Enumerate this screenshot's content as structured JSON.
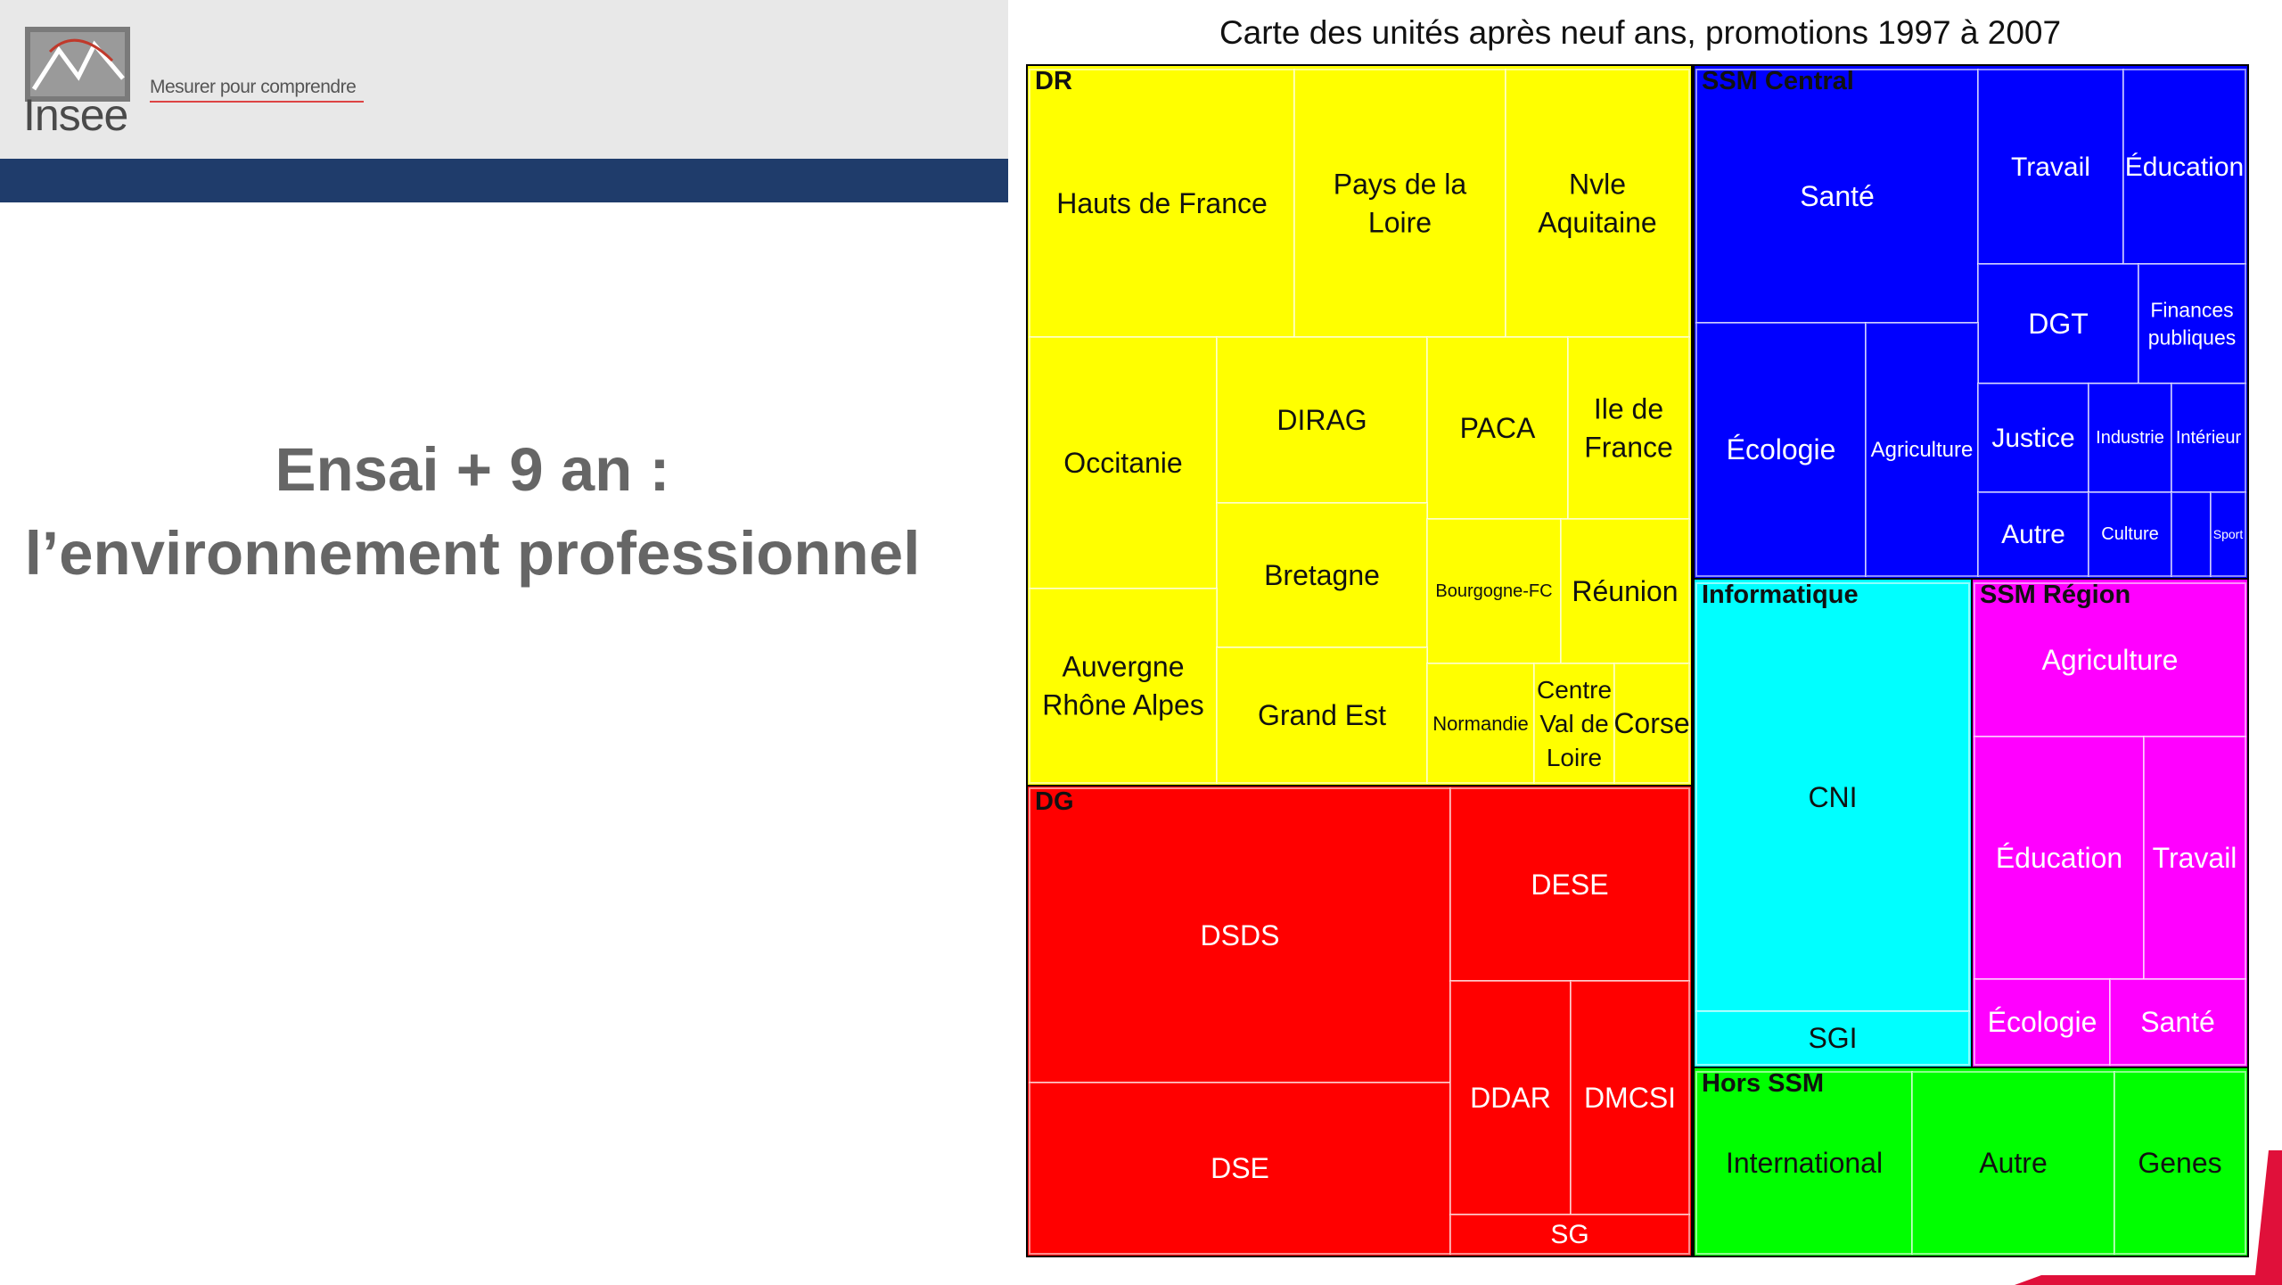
{
  "logo": {
    "word": "Insee",
    "tagline": "Mesurer pour comprendre"
  },
  "slide": {
    "title_line1": "Ensai + 9 an :",
    "title_line2": "l’environnement professionnel"
  },
  "colors": {
    "header_bar": "#1f3c6b",
    "DR": "#ffff00",
    "DG": "#ff0000",
    "SSM Central": "#0000ff",
    "Informatique": "#00ffff",
    "SSM Région": "#ff00ff",
    "Hors SSM": "#00ff00"
  },
  "chart_data": {
    "type": "treemap",
    "title": "Carte des unités après neuf ans, promotions 1997 à 2007",
    "groups": [
      {
        "name": "DR",
        "color": "#ffff00",
        "text_color": "#111111",
        "items": [
          {
            "label": "Hauts de France"
          },
          {
            "label": "Pays de la Loire"
          },
          {
            "label": "Nvle Aquitaine"
          },
          {
            "label": "Occitanie"
          },
          {
            "label": "DIRAG"
          },
          {
            "label": "PACA"
          },
          {
            "label": "Ile de France"
          },
          {
            "label": "Bretagne"
          },
          {
            "label": "Bourgogne-FC"
          },
          {
            "label": "Réunion"
          },
          {
            "label": "Auvergne Rhône Alpes"
          },
          {
            "label": "Grand Est"
          },
          {
            "label": "Normandie"
          },
          {
            "label": "Centre Val de Loire"
          },
          {
            "label": "Corse"
          }
        ]
      },
      {
        "name": "DG",
        "color": "#ff0000",
        "text_color": "#ffffff",
        "items": [
          {
            "label": "DSDS"
          },
          {
            "label": "DESE"
          },
          {
            "label": "DSE"
          },
          {
            "label": "DDAR"
          },
          {
            "label": "DMCSI"
          },
          {
            "label": "SG"
          }
        ]
      },
      {
        "name": "SSM Central",
        "color": "#0000ff",
        "text_color": "#ffffff",
        "items": [
          {
            "label": "Santé"
          },
          {
            "label": "Travail"
          },
          {
            "label": "Éducation"
          },
          {
            "label": "DGT"
          },
          {
            "label": "Finances publiques"
          },
          {
            "label": "Écologie"
          },
          {
            "label": "Agriculture"
          },
          {
            "label": "Justice"
          },
          {
            "label": "Industrie"
          },
          {
            "label": "Intérieur"
          },
          {
            "label": "Autre"
          },
          {
            "label": "Culture"
          },
          {
            "label": ""
          },
          {
            "label": "Sport"
          }
        ]
      },
      {
        "name": "Informatique",
        "color": "#00ffff",
        "text_color": "#111111",
        "items": [
          {
            "label": "CNI"
          },
          {
            "label": "SGI"
          }
        ]
      },
      {
        "name": "SSM Région",
        "color": "#ff00ff",
        "text_color": "#ffffff",
        "items": [
          {
            "label": "Agriculture"
          },
          {
            "label": "Éducation"
          },
          {
            "label": "Travail"
          },
          {
            "label": "Écologie"
          },
          {
            "label": "Santé"
          }
        ]
      },
      {
        "name": "Hors SSM",
        "color": "#00ff00",
        "text_color": "#111111",
        "items": [
          {
            "label": "International"
          },
          {
            "label": "Autre"
          },
          {
            "label": "Genes"
          }
        ]
      }
    ]
  }
}
